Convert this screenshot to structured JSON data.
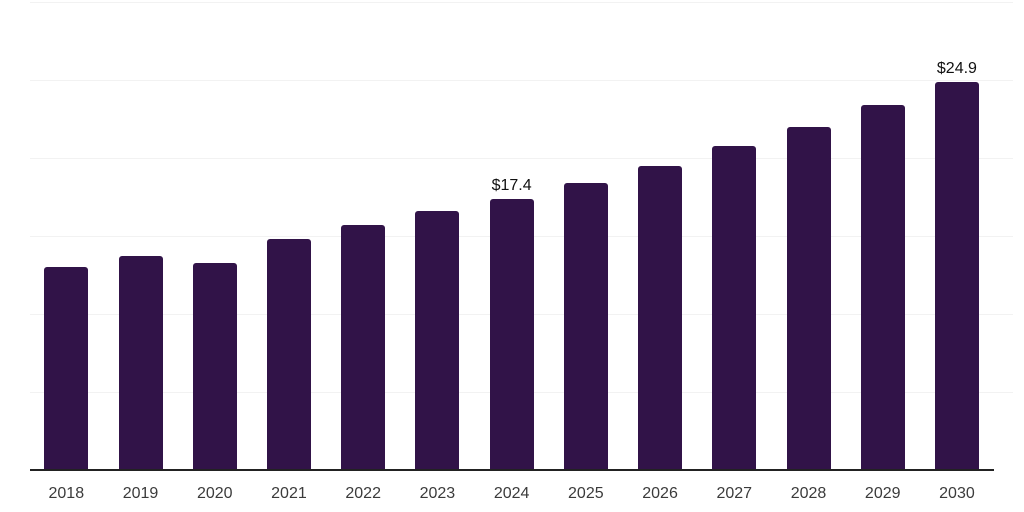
{
  "chart_data": {
    "type": "bar",
    "title": "",
    "xlabel": "",
    "ylabel": "",
    "categories": [
      "2018",
      "2019",
      "2020",
      "2021",
      "2022",
      "2023",
      "2024",
      "2025",
      "2026",
      "2027",
      "2028",
      "2029",
      "2030"
    ],
    "values": [
      13.0,
      13.7,
      13.3,
      14.8,
      15.7,
      16.6,
      17.4,
      18.4,
      19.5,
      20.8,
      22.0,
      23.4,
      24.9
    ],
    "point_labels": [
      "",
      "",
      "",
      "",
      "",
      "",
      "$17.4",
      "",
      "",
      "",
      "",
      "",
      "$24.9"
    ],
    "ylim": [
      0,
      30
    ],
    "grid_step": 5,
    "grid": true,
    "legend_position": "none",
    "y_tick_labels_visible": false,
    "colors": {
      "bar": "#311348",
      "grid_line": "#f2f2f2",
      "axis_line": "#222222",
      "value_label": "#111111",
      "tick_label": "#3b3b3b",
      "background": "#ffffff"
    }
  }
}
